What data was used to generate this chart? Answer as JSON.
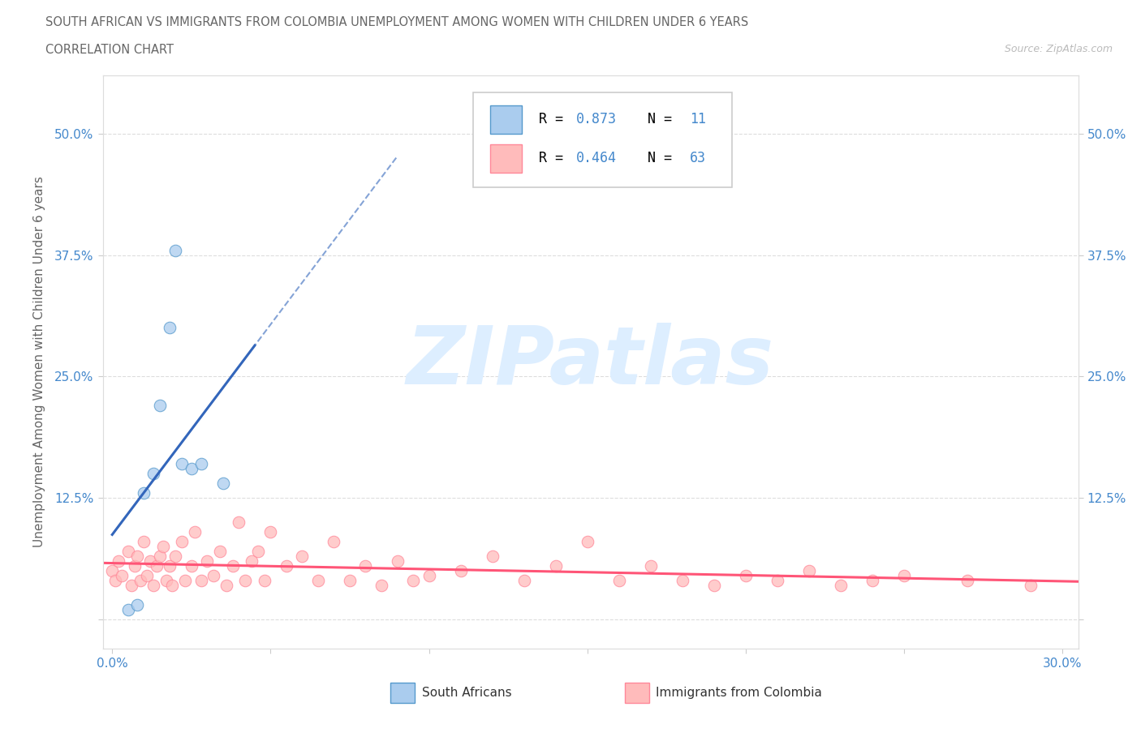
{
  "title_line1": "SOUTH AFRICAN VS IMMIGRANTS FROM COLOMBIA UNEMPLOYMENT AMONG WOMEN WITH CHILDREN UNDER 6 YEARS",
  "title_line2": "CORRELATION CHART",
  "source": "Source: ZipAtlas.com",
  "ylabel": "Unemployment Among Women with Children Under 6 years",
  "watermark": "ZIPatlas",
  "blue_marker_color": "#AACCEE",
  "blue_edge_color": "#5599CC",
  "pink_marker_color": "#FFBBBB",
  "pink_edge_color": "#FF8899",
  "blue_line_color": "#3366BB",
  "pink_line_color": "#FF5577",
  "axis_tick_color": "#4488CC",
  "title_color": "#666666",
  "label_color": "#666666",
  "grid_color": "#DDDDDD",
  "background_color": "#FFFFFF",
  "xlim": [
    -0.003,
    0.305
  ],
  "ylim": [
    -0.03,
    0.56
  ],
  "yticks": [
    0.0,
    0.125,
    0.25,
    0.375,
    0.5
  ],
  "ytick_labels": [
    "",
    "12.5%",
    "25.0%",
    "37.5%",
    "50.0%"
  ],
  "xticks": [
    0.0,
    0.05,
    0.1,
    0.15,
    0.2,
    0.25,
    0.3
  ],
  "xtick_labels": [
    "0.0%",
    "",
    "",
    "",
    "",
    "",
    "30.0%"
  ],
  "blue_x": [
    0.005,
    0.008,
    0.01,
    0.013,
    0.015,
    0.018,
    0.02,
    0.022,
    0.025,
    0.028,
    0.035
  ],
  "blue_y": [
    0.01,
    0.015,
    0.13,
    0.15,
    0.22,
    0.3,
    0.38,
    0.16,
    0.155,
    0.16,
    0.14
  ],
  "pink_x": [
    0.0,
    0.001,
    0.002,
    0.003,
    0.005,
    0.006,
    0.007,
    0.008,
    0.009,
    0.01,
    0.011,
    0.012,
    0.013,
    0.014,
    0.015,
    0.016,
    0.017,
    0.018,
    0.019,
    0.02,
    0.022,
    0.023,
    0.025,
    0.026,
    0.028,
    0.03,
    0.032,
    0.034,
    0.036,
    0.038,
    0.04,
    0.042,
    0.044,
    0.046,
    0.048,
    0.05,
    0.055,
    0.06,
    0.065,
    0.07,
    0.075,
    0.08,
    0.085,
    0.09,
    0.095,
    0.1,
    0.11,
    0.12,
    0.13,
    0.14,
    0.15,
    0.16,
    0.17,
    0.18,
    0.19,
    0.2,
    0.21,
    0.22,
    0.23,
    0.24,
    0.25,
    0.27,
    0.29
  ],
  "pink_y": [
    0.05,
    0.04,
    0.06,
    0.045,
    0.07,
    0.035,
    0.055,
    0.065,
    0.04,
    0.08,
    0.045,
    0.06,
    0.035,
    0.055,
    0.065,
    0.075,
    0.04,
    0.055,
    0.035,
    0.065,
    0.08,
    0.04,
    0.055,
    0.09,
    0.04,
    0.06,
    0.045,
    0.07,
    0.035,
    0.055,
    0.1,
    0.04,
    0.06,
    0.07,
    0.04,
    0.09,
    0.055,
    0.065,
    0.04,
    0.08,
    0.04,
    0.055,
    0.035,
    0.06,
    0.04,
    0.045,
    0.05,
    0.065,
    0.04,
    0.055,
    0.08,
    0.04,
    0.055,
    0.04,
    0.035,
    0.045,
    0.04,
    0.05,
    0.035,
    0.04,
    0.045,
    0.04,
    0.035
  ],
  "legend_R1": "0.873",
  "legend_N1": "11",
  "legend_R2": "0.464",
  "legend_N2": "63",
  "legend_label1": "South Africans",
  "legend_label2": "Immigrants from Colombia"
}
